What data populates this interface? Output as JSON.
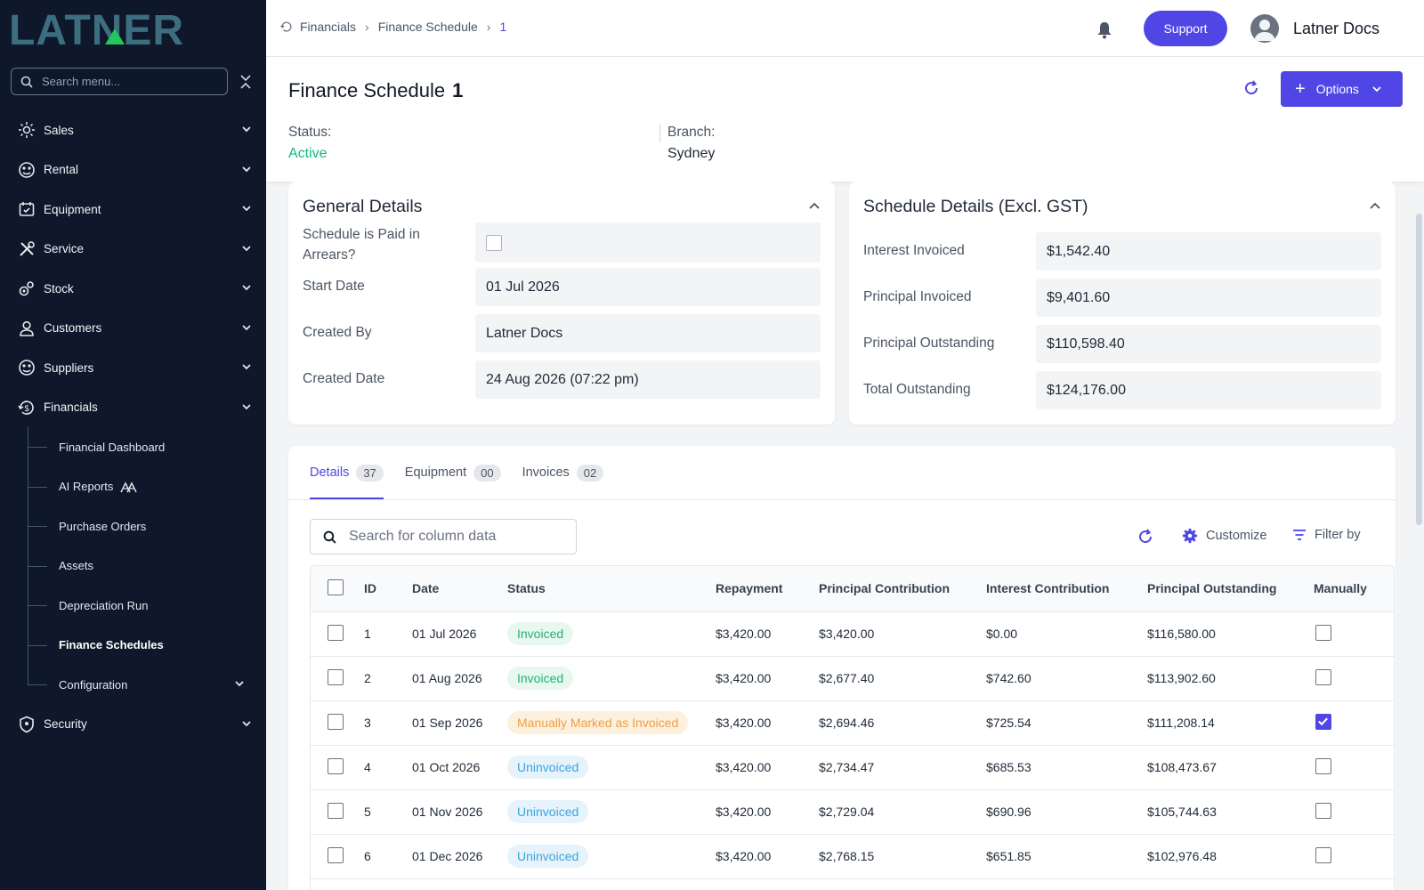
{
  "app": {
    "logo_text": "LATNER"
  },
  "sidebar": {
    "search_placeholder": "Search menu...",
    "items": [
      {
        "label": "Sales",
        "icon": "sales-icon"
      },
      {
        "label": "Rental",
        "icon": "rental-icon"
      },
      {
        "label": "Equipment",
        "icon": "equipment-icon"
      },
      {
        "label": "Service",
        "icon": "service-icon"
      },
      {
        "label": "Stock",
        "icon": "stock-icon"
      },
      {
        "label": "Customers",
        "icon": "customers-icon"
      },
      {
        "label": "Suppliers",
        "icon": "suppliers-icon"
      },
      {
        "label": "Financials",
        "icon": "financials-icon"
      },
      {
        "label": "Security",
        "icon": "security-icon"
      }
    ],
    "financials_sub": [
      {
        "label": "Financial Dashboard"
      },
      {
        "label": "AI Reports"
      },
      {
        "label": "Purchase Orders"
      },
      {
        "label": "Assets"
      },
      {
        "label": "Depreciation Run"
      },
      {
        "label": "Finance Schedules"
      },
      {
        "label": "Configuration"
      }
    ]
  },
  "topbar": {
    "breadcrumb": [
      "Financials",
      "Finance Schedule",
      "1"
    ],
    "support_label": "Support",
    "user_name": "Latner Docs"
  },
  "header": {
    "title": "Finance Schedule",
    "number": "1",
    "options_label": "Options",
    "status_label": "Status:",
    "status_value": "Active",
    "branch_label": "Branch:",
    "branch_value": "Sydney"
  },
  "general": {
    "title": "General Details",
    "paid_in_arrears_label": "Schedule is Paid in Arrears?",
    "paid_in_arrears": false,
    "start_date_label": "Start Date",
    "start_date": "01 Jul 2026",
    "created_by_label": "Created By",
    "created_by": "Latner Docs",
    "created_date_label": "Created Date",
    "created_date": "24 Aug 2026 (07:22 pm)"
  },
  "schedule": {
    "title": "Schedule Details (Excl. GST)",
    "interest_invoiced_label": "Interest Invoiced",
    "interest_invoiced": "$1,542.40",
    "principal_invoiced_label": "Principal Invoiced",
    "principal_invoiced": "$9,401.60",
    "principal_outstanding_label": "Principal Outstanding",
    "principal_outstanding": "$110,598.40",
    "total_outstanding_label": "Total Outstanding",
    "total_outstanding": "$124,176.00"
  },
  "tabs": [
    {
      "label": "Details",
      "count": "37"
    },
    {
      "label": "Equipment",
      "count": "00"
    },
    {
      "label": "Invoices",
      "count": "02"
    }
  ],
  "table_tools": {
    "search_placeholder": "Search for column data",
    "customize_label": "Customize",
    "filter_label": "Filter by"
  },
  "table": {
    "columns": [
      "ID",
      "Date",
      "Status",
      "Repayment",
      "Principal Contribution",
      "Interest Contribution",
      "Principal Outstanding",
      "Manually"
    ],
    "rows": [
      {
        "id": "1",
        "date": "01 Jul 2026",
        "status": "Invoiced",
        "status_type": "invoiced",
        "repayment": "$3,420.00",
        "principal_contribution": "$3,420.00",
        "interest_contribution": "$0.00",
        "principal_outstanding": "$116,580.00",
        "manual": false
      },
      {
        "id": "2",
        "date": "01 Aug 2026",
        "status": "Invoiced",
        "status_type": "invoiced",
        "repayment": "$3,420.00",
        "principal_contribution": "$2,677.40",
        "interest_contribution": "$742.60",
        "principal_outstanding": "$113,902.60",
        "manual": false
      },
      {
        "id": "3",
        "date": "01 Sep 2026",
        "status": "Manually Marked as Invoiced",
        "status_type": "manual",
        "repayment": "$3,420.00",
        "principal_contribution": "$2,694.46",
        "interest_contribution": "$725.54",
        "principal_outstanding": "$111,208.14",
        "manual": true
      },
      {
        "id": "4",
        "date": "01 Oct 2026",
        "status": "Uninvoiced",
        "status_type": "uninvoiced",
        "repayment": "$3,420.00",
        "principal_contribution": "$2,734.47",
        "interest_contribution": "$685.53",
        "principal_outstanding": "$108,473.67",
        "manual": false
      },
      {
        "id": "5",
        "date": "01 Nov 2026",
        "status": "Uninvoiced",
        "status_type": "uninvoiced",
        "repayment": "$3,420.00",
        "principal_contribution": "$2,729.04",
        "interest_contribution": "$690.96",
        "principal_outstanding": "$105,744.63",
        "manual": false
      },
      {
        "id": "6",
        "date": "01 Dec 2026",
        "status": "Uninvoiced",
        "status_type": "uninvoiced",
        "repayment": "$3,420.00",
        "principal_contribution": "$2,768.15",
        "interest_contribution": "$651.85",
        "principal_outstanding": "$102,976.48",
        "manual": false
      }
    ]
  },
  "colors": {
    "accent": "#4f46e5",
    "sidebar_bg": "#0f172a",
    "active_status": "#10b981",
    "logo": "#3c6e80",
    "logo_a": "#22c55e"
  }
}
